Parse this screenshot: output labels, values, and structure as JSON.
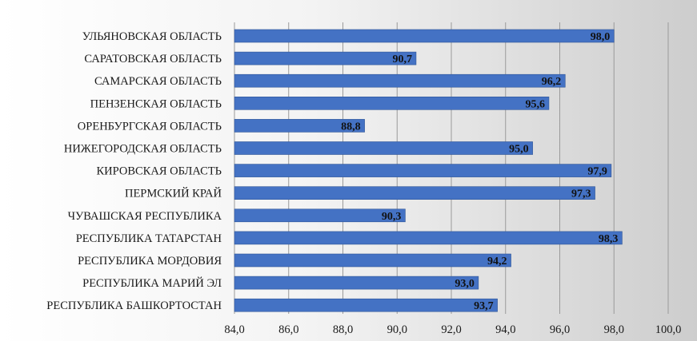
{
  "chart_data": {
    "type": "bar",
    "orientation": "horizontal",
    "categories": [
      "УЛЬЯНОВСКАЯ ОБЛАСТЬ",
      "САРАТОВСКАЯ ОБЛАСТЬ",
      "САМАРСКАЯ ОБЛАСТЬ",
      "ПЕНЗЕНСКАЯ ОБЛАСТЬ",
      "ОРЕНБУРГСКАЯ ОБЛАСТЬ",
      "НИЖЕГОРОДСКАЯ ОБЛАСТЬ",
      "КИРОВСКАЯ ОБЛАСТЬ",
      "ПЕРМСКИЙ КРАЙ",
      "ЧУВАШСКАЯ РЕСПУБЛИКА",
      "РЕСПУБЛИКА ТАТАРСТАН",
      "РЕСПУБЛИКА МОРДОВИЯ",
      "РЕСПУБЛИКА МАРИЙ ЭЛ",
      "РЕСПУБЛИКА БАШКОРТОСТАН"
    ],
    "values": [
      98.0,
      90.7,
      96.2,
      95.6,
      88.8,
      95.0,
      97.9,
      97.3,
      90.3,
      98.3,
      94.2,
      93.0,
      93.7
    ],
    "data_labels": [
      "98,0",
      "90,7",
      "96,2",
      "95,6",
      "88,8",
      "95,0",
      "97,9",
      "97,3",
      "90,3",
      "98,3",
      "94,2",
      "93,0",
      "93,7"
    ],
    "xlim": [
      84,
      100
    ],
    "ticks": [
      84,
      86,
      88,
      90,
      92,
      94,
      96,
      98,
      100
    ],
    "tick_labels": [
      "84,0",
      "86,0",
      "88,0",
      "90,0",
      "92,0",
      "94,0",
      "96,0",
      "98,0",
      "100,0"
    ],
    "title": "",
    "xlabel": "",
    "ylabel": "",
    "grid": "vertical",
    "legend": "none",
    "colors": {
      "bar": "#4472C4",
      "bar_edge": "#2F5597",
      "grid": "#9a9a9a",
      "background_light": "#ffffff",
      "background_dark": "#c9c9c9"
    }
  }
}
